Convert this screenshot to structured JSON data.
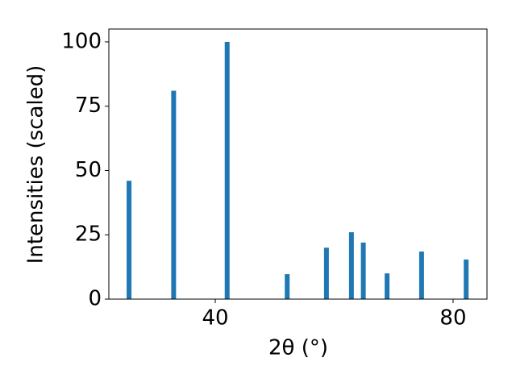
{
  "chart_data": {
    "type": "bar",
    "x": [
      25.5,
      33.0,
      42.0,
      52.1,
      58.7,
      62.9,
      64.9,
      68.9,
      74.7,
      82.2
    ],
    "values": [
      46,
      81,
      100,
      9.7,
      20,
      26,
      22,
      10,
      18.5,
      15.4
    ],
    "color": "#1f77b4",
    "xlabel": "2θ (°)",
    "ylabel": "Intensities (scaled)",
    "xlim": [
      22.1,
      85.7
    ],
    "xticks": [
      40,
      80
    ],
    "ylim": [
      0,
      105
    ],
    "yticks": [
      0,
      25,
      50,
      75,
      100
    ],
    "grid": false
  }
}
